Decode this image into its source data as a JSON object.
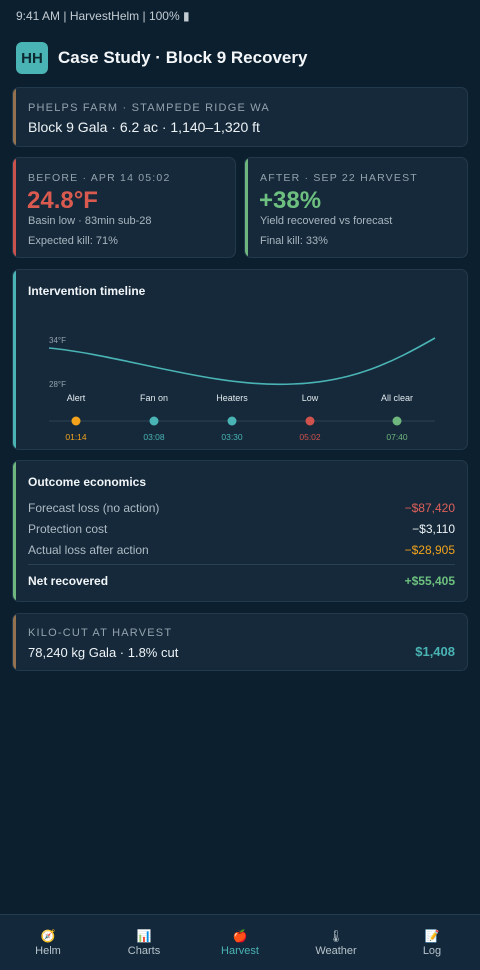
{
  "status": {
    "text": "9:41 AM | HarvestHelm | 100% ▮"
  },
  "header": {
    "logo": "HH",
    "title": "Case Study · Block 9 Recovery"
  },
  "farm": {
    "eyebrow": "PHELPS FARM · STAMPEDE RIDGE WA",
    "detail": "Block 9 Gala · 6.2 ac · 1,140–1,320 ft"
  },
  "before": {
    "eyebrow": "BEFORE · APR 14 05:02",
    "value": "24.8°F",
    "line1": "Basin low · 83min sub-28",
    "line2": "Expected kill: 71%"
  },
  "after": {
    "eyebrow": "AFTER · SEP 22 HARVEST",
    "value": "+38%",
    "line1": "Yield recovered vs forecast",
    "line2": "Final kill: 33%"
  },
  "timeline": {
    "title": "Intervention timeline",
    "y_label_top": "34°F",
    "y_label_bottom": "28°F",
    "events": [
      {
        "label": "Alert",
        "time": "01:14",
        "color": "#f2a31b"
      },
      {
        "label": "Fan on",
        "time": "03:08",
        "color": "#4ab3b4"
      },
      {
        "label": "Heaters",
        "time": "03:30",
        "color": "#4ab3b4"
      },
      {
        "label": "Low",
        "time": "05:02",
        "color": "#d0524c"
      },
      {
        "label": "All clear",
        "time": "07:40",
        "color": "#6fb57e"
      }
    ]
  },
  "economics": {
    "title": "Outcome economics",
    "rows": [
      {
        "label": "Forecast loss (no action)",
        "value": "−$87,420",
        "color": "#e0605a"
      },
      {
        "label": "Protection cost",
        "value": "−$3,110",
        "color": "#eef3f6"
      },
      {
        "label": "Actual loss after action",
        "value": "−$28,905",
        "color": "#f2a31b"
      }
    ],
    "net": {
      "label": "Net recovered",
      "value": "+$55,405",
      "color": "#6dc07f"
    }
  },
  "kilo": {
    "eyebrow": "KILO-CUT AT HARVEST",
    "detail": "78,240 kg Gala · 1.8% cut",
    "value": "$1,408"
  },
  "tabs": [
    {
      "label": "Helm",
      "icon": "🧭",
      "icon_name": "compass-icon",
      "active": false
    },
    {
      "label": "Charts",
      "icon": "📊",
      "icon_name": "bar-chart-icon",
      "active": false
    },
    {
      "label": "Harvest",
      "icon": "🍎",
      "icon_name": "apple-icon",
      "active": true
    },
    {
      "label": "Weather",
      "icon": "🌡",
      "icon_name": "thermometer-icon",
      "active": false
    },
    {
      "label": "Log",
      "icon": "📝",
      "icon_name": "memo-icon",
      "active": false
    }
  ]
}
